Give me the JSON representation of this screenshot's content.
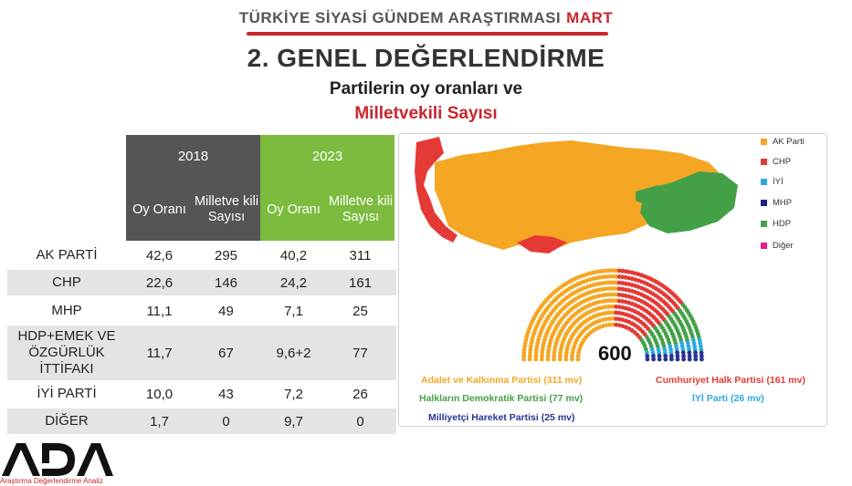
{
  "header": {
    "top_title": "TÜRKİYE SİYASİ GÜNDEM ARAŞTIRMASI",
    "top_title_month": "MART",
    "main_title": "2. GENEL DEĞERLENDİRME",
    "subtitle_line1": "Partilerin oy oranları ve",
    "subtitle_line2": "Milletvekili Sayısı"
  },
  "table": {
    "years": [
      "2018",
      "2023"
    ],
    "subheaders": [
      "Oy Oranı",
      "Milletve kili Sayısı",
      "Oy Oranı",
      "Milletve kili Sayısı"
    ],
    "rows": [
      {
        "name": "AK PARTİ",
        "vote2018": "42,6",
        "seats2018": "295",
        "vote2023": "40,2",
        "seats2023": "311"
      },
      {
        "name": "CHP",
        "vote2018": "22,6",
        "seats2018": "146",
        "vote2023": "24,2",
        "seats2023": "161"
      },
      {
        "name": "MHP",
        "vote2018": "11,1",
        "seats2018": "49",
        "vote2023": "7,1",
        "seats2023": "25"
      },
      {
        "name": "HDP+EMEK VE ÖZGÜRLÜK İTTİFAKI",
        "vote2018": "11,7",
        "seats2018": "67",
        "vote2023": "9,6+2",
        "seats2023": "77"
      },
      {
        "name": "İYİ PARTİ",
        "vote2018": "10,0",
        "seats2018": "43",
        "vote2023": "7,2",
        "seats2023": "26"
      },
      {
        "name": "DİĞER",
        "vote2018": "1,7",
        "seats2018": "0",
        "vote2023": "9,7",
        "seats2023": "0"
      }
    ]
  },
  "map_legend": [
    {
      "label": "AK Parti",
      "color": "#f5a623"
    },
    {
      "label": "CHP",
      "color": "#e53935"
    },
    {
      "label": "İYİ",
      "color": "#29a9e0"
    },
    {
      "label": "MHP",
      "color": "#1a237e"
    },
    {
      "label": "HDP",
      "color": "#43a047"
    },
    {
      "label": "Diğer",
      "color": "#e91e8c"
    }
  ],
  "parliament": {
    "total": "600",
    "seats": [
      {
        "party": "AKP",
        "count": 311,
        "color": "#f5a623"
      },
      {
        "party": "CHP",
        "count": 161,
        "color": "#e53935"
      },
      {
        "party": "HDP",
        "count": 77,
        "color": "#43a047"
      },
      {
        "party": "IYI",
        "count": 26,
        "color": "#29a9e0"
      },
      {
        "party": "MHP",
        "count": 25,
        "color": "#283593"
      }
    ],
    "captions": {
      "akp": "Adalet ve Kalkınma Partisi (311 mv)",
      "chp": "Cumhuriyet Halk Partisi (161 mv)",
      "hdp": "Halkların Demokratik Partisi (77 mv)",
      "iyi": "İYİ Parti (26 mv)",
      "mhp": "Milliyetçi Hareket Partisi (25 mv)"
    }
  },
  "logo": {
    "text": "ADA",
    "subtitle": "Araştırma Değerlendirme Analiz"
  }
}
